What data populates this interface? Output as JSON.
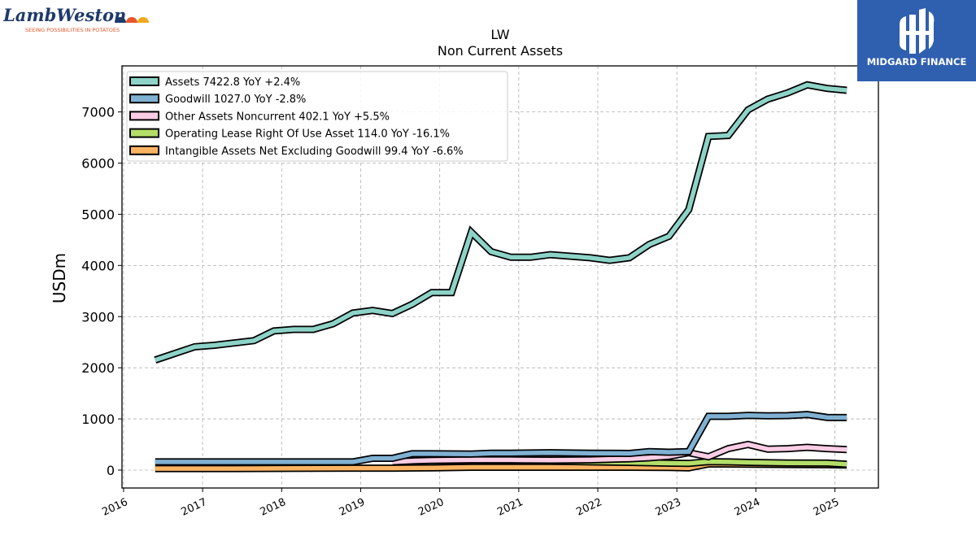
{
  "brand": {
    "left_logo_text": "LambWeston",
    "left_logo_tagline": "SEEING POSSIBILITIES IN POTATOES",
    "right_logo_text": "MIDGARD FINANCE",
    "right_logo_bg": "#2f5faf"
  },
  "chart_data": {
    "type": "line",
    "title": "LW",
    "subtitle": "Non Current  Assets",
    "ylabel": "USDm",
    "xlabel": "",
    "xlim": [
      2015.98,
      2025.55
    ],
    "ylim": [
      -350,
      7900
    ],
    "yticks": [
      0,
      1000,
      2000,
      3000,
      4000,
      5000,
      6000,
      7000
    ],
    "xticks": [
      2016,
      2017,
      2018,
      2019,
      2020,
      2021,
      2022,
      2023,
      2024,
      2025
    ],
    "grid": true,
    "legend_position": "top-left",
    "series": [
      {
        "name": "Assets",
        "legend": "Assets  7422.8 YoY +2.4%",
        "color": "#8dd3c7",
        "points": [
          [
            2016.4,
            2150
          ],
          [
            2016.9,
            2410
          ],
          [
            2017.15,
            2440
          ],
          [
            2017.65,
            2530
          ],
          [
            2017.9,
            2720
          ],
          [
            2018.15,
            2750
          ],
          [
            2018.4,
            2750
          ],
          [
            2018.65,
            2860
          ],
          [
            2018.9,
            3070
          ],
          [
            2019.15,
            3120
          ],
          [
            2019.4,
            3060
          ],
          [
            2019.65,
            3240
          ],
          [
            2019.9,
            3470
          ],
          [
            2020.15,
            3470
          ],
          [
            2020.4,
            4650
          ],
          [
            2020.65,
            4270
          ],
          [
            2020.9,
            4160
          ],
          [
            2021.15,
            4160
          ],
          [
            2021.4,
            4210
          ],
          [
            2021.65,
            4180
          ],
          [
            2021.9,
            4150
          ],
          [
            2022.15,
            4100
          ],
          [
            2022.4,
            4150
          ],
          [
            2022.65,
            4410
          ],
          [
            2022.9,
            4570
          ],
          [
            2023.15,
            5090
          ],
          [
            2023.4,
            6520
          ],
          [
            2023.65,
            6540
          ],
          [
            2023.9,
            7040
          ],
          [
            2024.15,
            7250
          ],
          [
            2024.4,
            7370
          ],
          [
            2024.65,
            7530
          ],
          [
            2024.9,
            7460
          ],
          [
            2025.15,
            7422.8
          ]
        ]
      },
      {
        "name": "Goodwill",
        "legend": "Goodwill  1027.0 YoY -2.8%",
        "color": "#80b1d3",
        "points": [
          [
            2016.4,
            160
          ],
          [
            2016.9,
            160
          ],
          [
            2017.9,
            160
          ],
          [
            2018.9,
            160
          ],
          [
            2019.15,
            230
          ],
          [
            2019.4,
            230
          ],
          [
            2019.65,
            320
          ],
          [
            2019.9,
            320
          ],
          [
            2020.4,
            315
          ],
          [
            2020.65,
            330
          ],
          [
            2020.9,
            330
          ],
          [
            2021.4,
            340
          ],
          [
            2021.9,
            330
          ],
          [
            2022.4,
            325
          ],
          [
            2022.65,
            360
          ],
          [
            2022.9,
            350
          ],
          [
            2023.15,
            360
          ],
          [
            2023.4,
            1050
          ],
          [
            2023.65,
            1050
          ],
          [
            2023.9,
            1070
          ],
          [
            2024.15,
            1060
          ],
          [
            2024.4,
            1065
          ],
          [
            2024.65,
            1085
          ],
          [
            2024.9,
            1030
          ],
          [
            2025.15,
            1027.0
          ]
        ]
      },
      {
        "name": "Other Assets Noncurrent",
        "legend": "Other Assets Noncurrent  402.1 YoY +5.5%",
        "color": "#fccde5",
        "points": [
          [
            2019.4,
            160
          ],
          [
            2019.65,
            180
          ],
          [
            2019.9,
            190
          ],
          [
            2020.4,
            200
          ],
          [
            2020.9,
            200
          ],
          [
            2021.4,
            195
          ],
          [
            2021.9,
            200
          ],
          [
            2022.4,
            220
          ],
          [
            2022.65,
            240
          ],
          [
            2022.9,
            270
          ],
          [
            2023.15,
            340
          ],
          [
            2023.4,
            260
          ],
          [
            2023.65,
            420
          ],
          [
            2023.9,
            500
          ],
          [
            2024.15,
            410
          ],
          [
            2024.4,
            420
          ],
          [
            2024.65,
            445
          ],
          [
            2024.9,
            420
          ],
          [
            2025.15,
            402.1
          ]
        ]
      },
      {
        "name": "Operating Lease Right Of Use Asset",
        "legend": "Operating Lease Right Of Use Asset  114.0 YoY -16.1%",
        "color": "#b3de69",
        "points": [
          [
            2019.4,
            170
          ],
          [
            2019.65,
            185
          ],
          [
            2020.15,
            190
          ],
          [
            2020.9,
            185
          ],
          [
            2021.4,
            175
          ],
          [
            2021.9,
            160
          ],
          [
            2022.4,
            150
          ],
          [
            2022.9,
            135
          ],
          [
            2023.15,
            130
          ],
          [
            2023.4,
            165
          ],
          [
            2023.65,
            160
          ],
          [
            2023.9,
            150
          ],
          [
            2024.4,
            140
          ],
          [
            2024.9,
            136
          ],
          [
            2025.15,
            114.0
          ]
        ]
      },
      {
        "name": "Intangible Assets Net Excluding Goodwill",
        "legend": "Intangible Assets Net Excluding Goodwill  99.4 YoY -6.6%",
        "color": "#fdb462",
        "points": [
          [
            2016.4,
            30
          ],
          [
            2017.4,
            30
          ],
          [
            2018.4,
            35
          ],
          [
            2018.9,
            38
          ],
          [
            2019.4,
            38
          ],
          [
            2019.9,
            45
          ],
          [
            2020.4,
            55
          ],
          [
            2020.9,
            55
          ],
          [
            2021.4,
            55
          ],
          [
            2021.9,
            55
          ],
          [
            2022.4,
            55
          ],
          [
            2022.9,
            50
          ],
          [
            2023.15,
            45
          ],
          [
            2023.4,
            120
          ],
          [
            2023.9,
            115
          ],
          [
            2024.4,
            110
          ],
          [
            2024.9,
            105
          ],
          [
            2025.15,
            99.4
          ]
        ]
      }
    ]
  }
}
